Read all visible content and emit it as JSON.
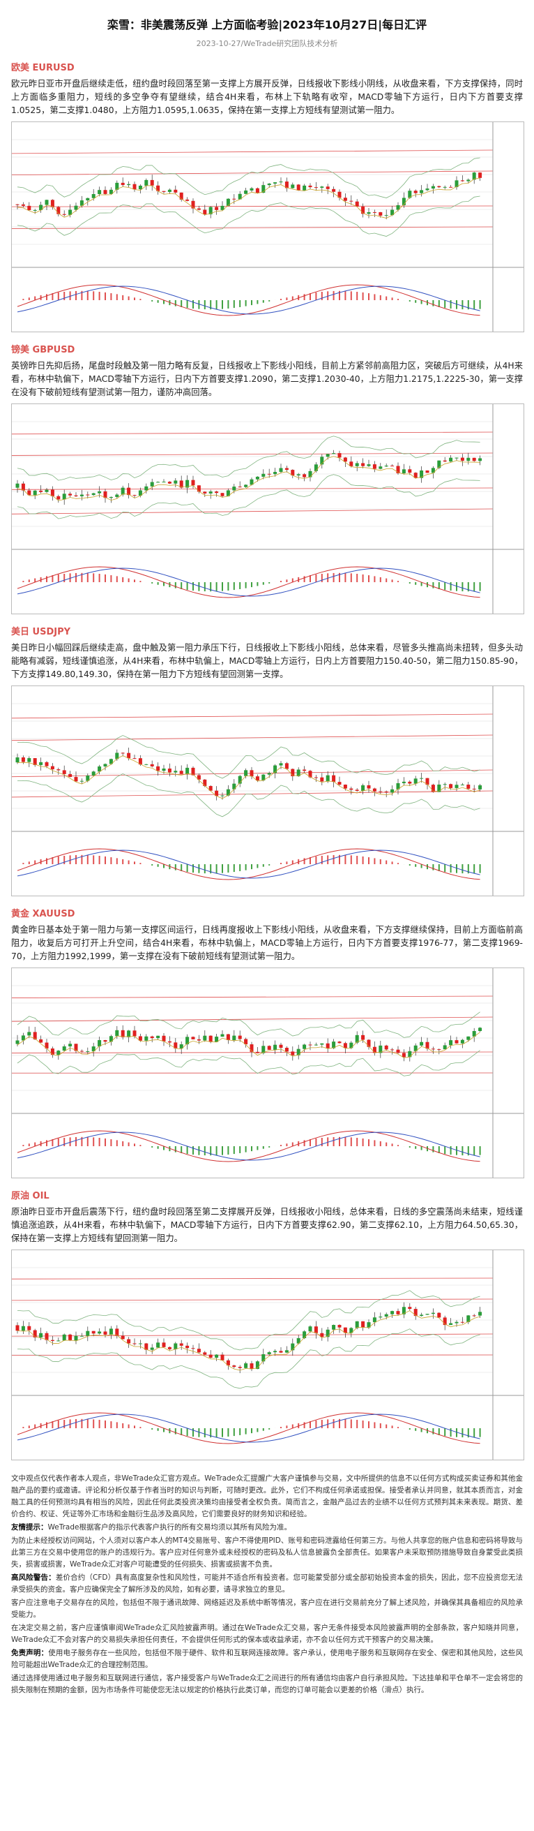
{
  "header": {
    "title": "栾雪：非美震荡反弹 上方面临考验|2023年10月27日|每日汇评",
    "subtitle": "2023-10-27/WeTrade研究团队技术分析"
  },
  "sections": [
    {
      "heading": "欧美 EURUSD",
      "body": "欧元昨日亚市开盘后继续走低，纽约盘时段回落至第一支撑上方展开反弹，日线报收下影线小阴线，从收盘来看，下方支撑保持，同时上方面临多重阻力，短线的多空争夺有望继续，结合4H来看，布林上下轨略有收窄，MACD零轴下方运行，日内下方首要支撑1.0525，第二支撑1.0480，上方阻力1.0595,1.0635，保持在第一支撑上方短线有望测试第一阻力。"
    },
    {
      "heading": "镑美 GBPUSD",
      "body": "英镑昨日先抑后扬，尾盘时段触及第一阻力略有反复，日线报收上下影线小阳线，目前上方紧邻前高阻力区，突破后方可继续，从4H来看，布林中轨偏下，MACD零轴下方运行，日内下方首要支撑1.2090，第二支撑1.2030-40，上方阻力1.2175,1.2225-30，第一支撑在没有下破前短线有望测试第一阻力，谨防冲高回落。"
    },
    {
      "heading": "美日 USDJPY",
      "body": "美日昨日小幅回踩后继续走高，盘中触及第一阻力承压下行，日线报收上下影线小阳线，总体来看，尽管多头推高尚未扭转，但多头动能略有减弱，短线谨慎追涨，从4H来看，布林中轨偏上，MACD零轴上方运行，日内上方首要阻力150.40-50，第二阻力150.85-90，下方支撑149.80,149.30，保持在第一阻力下方短线有望回测第一支撑。"
    },
    {
      "heading": "黄金 XAUUSD",
      "body": "黄金昨日基本处于第一阻力与第一支撑区间运行，日线再度报收上下影线小阳线，从收盘来看，下方支撑继续保持，目前上方面临前高阻力，收复后方可打开上升空间，结合4H来看，布林中轨偏上，MACD零轴上方运行，日内下方首要支撑1976-77，第二支撑1969-70，上方阻力1992,1999，第一支撑在没有下破前短线有望测试第一阻力。"
    },
    {
      "heading": "原油 OIL",
      "body": "原油昨日亚市开盘后震荡下行，纽约盘时段回落至第二支撑展开反弹，日线报收小阳线，总体来看，日线的多空震荡尚未结束，短线谨慎追涨追跌，从4H来看，布林中轨偏下，MACD零轴下方运行，日内下方首要支撑62.90，第二支撑62.10，上方阻力64.50,65.30，保持在第一支撑上方短线有望回测第一阻力。"
    }
  ],
  "disclaimer": [
    {
      "lead": "",
      "text": "文中观点仅代表作者本人观点，非WeTrade众汇官方观点。WeTrade众汇提醒广大客户谨慎参与交易，文中所提供的信息不以任何方式构成买卖证券和其他金融产品的要约或邀请。评论和分析仅基于作者当时的知识与判断，可随时更改。此外，它们不构成任何承诺或担保。接受者承认并同意，就其本质而言，对金融工具的任何预测均具有相当的风险，因此任何此类投资决策均由接受者全权负责。简而言之，金融产品过去的业绩不以任何方式预判其未来表现。期货、差价合约、权证、凭证等外汇市场和金融衍生品涉及高风险，它们需要良好的财务知识和经验。"
    },
    {
      "lead": "友情提示：",
      "text": "WeTrade根据客户的指示代表客户执行的所有交易均须以其所有风险为准。"
    },
    {
      "lead": "",
      "text": "为防止未经授权访问网站，个人须对以客户本人的MT4交易账号、客户不得使用PID、账号和密码泄露给任何第三方。与他人共享您的账户信息和密码将导致与此第三方在交易中使用您的账户的违规行为。客户应对任何意外或未经授权的密码及私人信息披露负全部责任。如果客户未采取预防措施导致自身蒙受此类损失，损害或损害，WeTrade众汇对客户可能遭受的任何损失、损害或损害不负责。"
    },
    {
      "lead": "高风险警告：",
      "text": "差价合约（CFD）具有高度复杂性和风险性，可能并不适合所有投资者。您可能蒙受部分或全部初始投资本金的损失，因此，您不应投资您无法承受损失的资金。客户应确保完全了解所涉及的风险，如有必要，请寻求独立的意见。"
    },
    {
      "lead": "",
      "text": "客户应注意电子交易存在的风险，包括但不限于通讯故障、网络延迟及系统中断等情况，客户应在进行交易前充分了解上述风险，并确保其具备相应的风险承受能力。"
    },
    {
      "lead": "",
      "text": "在决定交易之前，客户应谨慎审阅WeTrade众汇风险披露声明。通过在WeTrade众汇交易，客户无条件接受本风险披露声明的全部条款，客户知晓并同意，WeTrade众汇不会对客户的交易损失承担任何责任，不会提供任何形式的保本或收益承诺，亦不会以任何方式干预客户的交易决策。"
    },
    {
      "lead": "免责声明：",
      "text": "使用电子服务存在一些风险，包括但不限于硬件、软件和互联网连接故障。客户承认，使用电子服务和互联网存在安全、保密和其他风险，这些风险可能超出WeTrade众汇的合理控制范围。"
    },
    {
      "lead": "",
      "text": "通过选择使用通过电子服务和互联网进行通信，客户接受客户与WeTrade众汇之间进行的所有通信均由客户自行承担风险。下达挂单和平仓单不一定会将您的损失限制在预期的金额，因为市场条件可能使您无法以规定的价格执行此类订单，而您的订单可能会以更差的价格（滑点）执行。"
    }
  ]
}
